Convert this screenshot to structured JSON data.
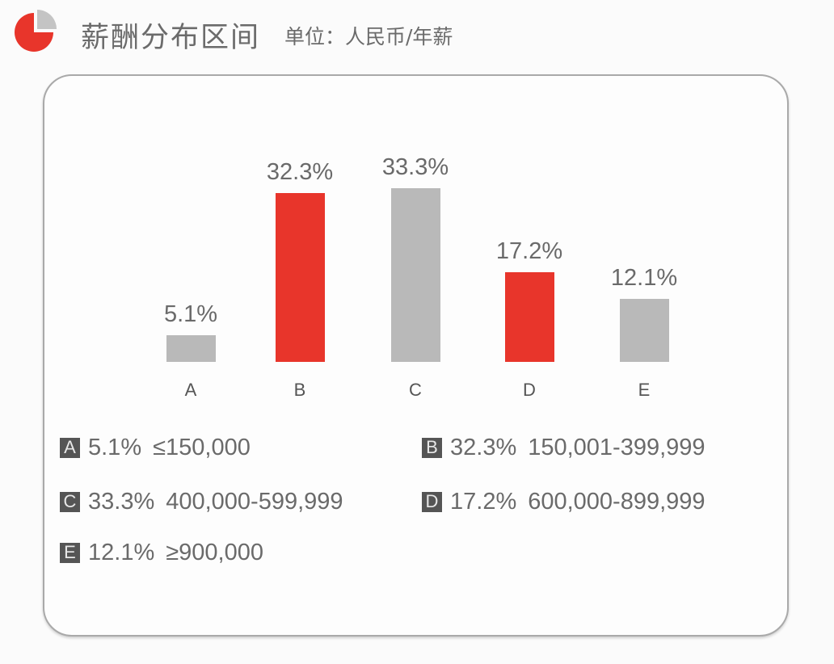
{
  "header": {
    "icon": "pie-chart-icon",
    "title": "薪酬分布区间",
    "unit": "单位：人民币/年薪"
  },
  "colors": {
    "red": "#e8352b",
    "gray": "#b9b9b9",
    "legend_box": "#555555",
    "text": "#6a6a6a"
  },
  "chart_data": {
    "type": "bar",
    "title": "薪酬分布区间",
    "subtitle": "单位：人民币/年薪",
    "categories": [
      "A",
      "B",
      "C",
      "D",
      "E"
    ],
    "values": [
      5.1,
      32.3,
      33.3,
      17.2,
      12.1
    ],
    "value_labels": [
      "5.1%",
      "32.3%",
      "33.3%",
      "17.2%",
      "12.1%"
    ],
    "bar_colors": [
      "#b9b9b9",
      "#e8352b",
      "#b9b9b9",
      "#e8352b",
      "#b9b9b9"
    ],
    "xlabel": "",
    "ylabel": "",
    "unit": "%",
    "grid": false,
    "axes_visible": false,
    "legend_position": "bottom",
    "legend": [
      {
        "key": "A",
        "pct": "5.1%",
        "range": "≤150,000"
      },
      {
        "key": "B",
        "pct": "32.3%",
        "range": "150,001-399,999"
      },
      {
        "key": "C",
        "pct": "33.3%",
        "range": "400,000-599,999"
      },
      {
        "key": "D",
        "pct": "17.2%",
        "range": "600,000-899,999"
      },
      {
        "key": "E",
        "pct": "12.1%",
        "range": "≥900,000"
      }
    ]
  }
}
